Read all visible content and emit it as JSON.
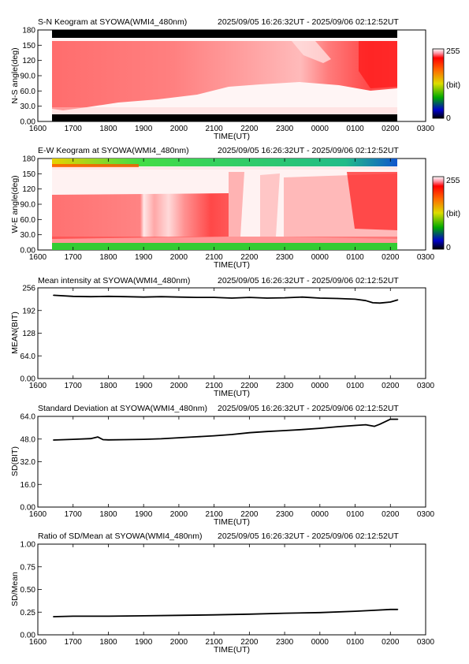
{
  "time_axis": {
    "ticks": [
      "1600",
      "1700",
      "1800",
      "1900",
      "2000",
      "2100",
      "2200",
      "2300",
      "0000",
      "0100",
      "0200",
      "0300"
    ],
    "label": "TIME(UT)",
    "data_start_hour": 16.44,
    "data_end_hour": 26.21
  },
  "colorbar": {
    "max_label": "255",
    "mid_label": "(bit)",
    "min_label": "0"
  },
  "panels": {
    "sn_keogram": {
      "title": "S-N Keogram at SYOWA(WMI4_480nm)",
      "time_range": "2025/09/05 16:26:32UT - 2025/09/06 02:12:52UT",
      "ylabel": "N-S angle(deg)",
      "yticks": [
        "0.00",
        "30.0",
        "60.0",
        "90.0",
        "120",
        "150",
        "180"
      ]
    },
    "ew_keogram": {
      "title": "E-W Keogram at SYOWA(WMI4_480nm)",
      "time_range": "2025/09/05 16:26:32UT - 2025/09/06 02:12:52UT",
      "ylabel": "W-E angle(deg)",
      "yticks": [
        "0.00",
        "30.0",
        "60.0",
        "90.0",
        "120",
        "150",
        "180"
      ]
    }
  },
  "chart_data": [
    {
      "type": "heatmap",
      "title": "S-N Keogram at SYOWA(WMI4_480nm)",
      "subtitle": "2025/09/05 16:26:32UT - 2025/09/06 02:12:52UT",
      "xlabel": "TIME(UT)",
      "ylabel": "N-S angle(deg)",
      "ylim": [
        0,
        180
      ],
      "xlim_hours": [
        16,
        27
      ],
      "colorbar": {
        "min": 0,
        "max": 255,
        "unit": "(bit)"
      },
      "colors": {
        "low": "#ffffff",
        "high": "#ff0000",
        "mask": "#000000"
      }
    },
    {
      "type": "heatmap",
      "title": "E-W Keogram at SYOWA(WMI4_480nm)",
      "subtitle": "2025/09/05 16:26:32UT - 2025/09/06 02:12:52UT",
      "xlabel": "TIME(UT)",
      "ylabel": "W-E angle(deg)",
      "ylim": [
        0,
        180
      ],
      "xlim_hours": [
        16,
        27
      ],
      "colorbar": {
        "min": 0,
        "max": 255,
        "unit": "(bit)"
      },
      "colors": {
        "low": "#ffffff",
        "high": "#ff0000",
        "edge": "#22cc22"
      }
    },
    {
      "type": "line",
      "title": "Mean intensity at SYOWA(WMI4_480nm)",
      "subtitle": "2025/09/05 16:26:32UT - 2025/09/06 02:12:52UT",
      "xlabel": "TIME(UT)",
      "ylabel": "MEAN(BIT)",
      "xlim_hours": [
        16,
        27
      ],
      "ylim": [
        0,
        256
      ],
      "yticks": [
        "0.00",
        "64.0",
        "128",
        "192",
        "256"
      ],
      "x": [
        16.44,
        17.0,
        17.5,
        18.0,
        18.5,
        19.0,
        19.5,
        20.0,
        20.5,
        21.0,
        21.5,
        22.0,
        22.5,
        23.0,
        23.5,
        24.0,
        24.5,
        25.0,
        25.3,
        25.5,
        25.7,
        26.0,
        26.21
      ],
      "y": [
        235,
        232,
        231,
        232,
        231,
        230,
        231,
        230,
        229,
        229,
        227,
        229,
        227,
        228,
        230,
        227,
        226,
        224,
        220,
        214,
        213,
        216,
        222
      ]
    },
    {
      "type": "line",
      "title": "Standard Deviation at SYOWA(WMI4_480nm)",
      "subtitle": "2025/09/05 16:26:32UT - 2025/09/06 02:12:52UT",
      "xlabel": "TIME(UT)",
      "ylabel": "SD(BIT)",
      "xlim_hours": [
        16,
        27
      ],
      "ylim": [
        0,
        64
      ],
      "yticks": [
        "0.00",
        "16.0",
        "32.0",
        "48.0",
        "64.0"
      ],
      "x": [
        16.44,
        17.0,
        17.5,
        17.7,
        17.85,
        18.0,
        18.5,
        19.0,
        19.5,
        20.0,
        20.5,
        21.0,
        21.5,
        22.0,
        22.5,
        23.0,
        23.5,
        24.0,
        24.5,
        25.0,
        25.3,
        25.55,
        25.7,
        26.0,
        26.21
      ],
      "y": [
        47.3,
        47.8,
        48.3,
        49.5,
        47.6,
        47.4,
        47.6,
        47.8,
        48.2,
        48.9,
        49.6,
        50.3,
        51.2,
        52.5,
        53.3,
        54.0,
        54.7,
        55.6,
        56.7,
        57.6,
        58.1,
        57.0,
        58.5,
        62.0,
        62.0
      ]
    },
    {
      "type": "line",
      "title": "Ratio of SD/Mean at SYOWA(WMI4_480nm)",
      "subtitle": "2025/09/05 16:26:32UT - 2025/09/06 02:12:52UT",
      "xlabel": "TIME(UT)",
      "ylabel": "SD/Mean",
      "xlim_hours": [
        16,
        27
      ],
      "ylim": [
        0,
        1
      ],
      "yticks": [
        "0.00",
        "0.25",
        "0.50",
        "0.75",
        "1.00"
      ],
      "x": [
        16.44,
        17.0,
        18.0,
        19.0,
        20.0,
        21.0,
        22.0,
        23.0,
        24.0,
        25.0,
        25.5,
        26.0,
        26.21
      ],
      "y": [
        0.2,
        0.205,
        0.205,
        0.21,
        0.215,
        0.22,
        0.228,
        0.238,
        0.245,
        0.26,
        0.27,
        0.28,
        0.28
      ]
    }
  ]
}
